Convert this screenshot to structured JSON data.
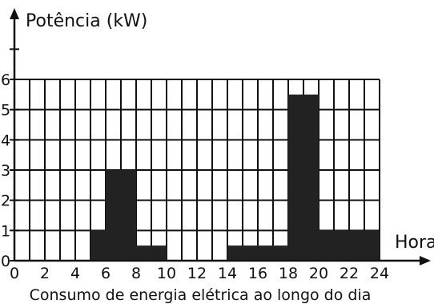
{
  "chart_data": {
    "type": "bar",
    "title": "",
    "caption": "Consumo de energia elétrica ao longo do dia",
    "ylabel": "Potência (kW)",
    "xlabel": "Hora",
    "xlim": [
      0,
      24
    ],
    "ylim": [
      0,
      6
    ],
    "x_ticks": [
      0,
      2,
      4,
      6,
      8,
      10,
      12,
      14,
      16,
      18,
      20,
      22,
      24
    ],
    "y_ticks": [
      0,
      1,
      2,
      3,
      4,
      5,
      6
    ],
    "grid": true,
    "bar_color": "#222222",
    "bars": [
      {
        "start": 0,
        "end": 5,
        "value": 0
      },
      {
        "start": 5,
        "end": 6,
        "value": 1
      },
      {
        "start": 6,
        "end": 8,
        "value": 3
      },
      {
        "start": 8,
        "end": 10,
        "value": 0.5
      },
      {
        "start": 10,
        "end": 14,
        "value": 0
      },
      {
        "start": 14,
        "end": 18,
        "value": 0.5
      },
      {
        "start": 18,
        "end": 20,
        "value": 5.5
      },
      {
        "start": 20,
        "end": 24,
        "value": 1
      }
    ]
  }
}
